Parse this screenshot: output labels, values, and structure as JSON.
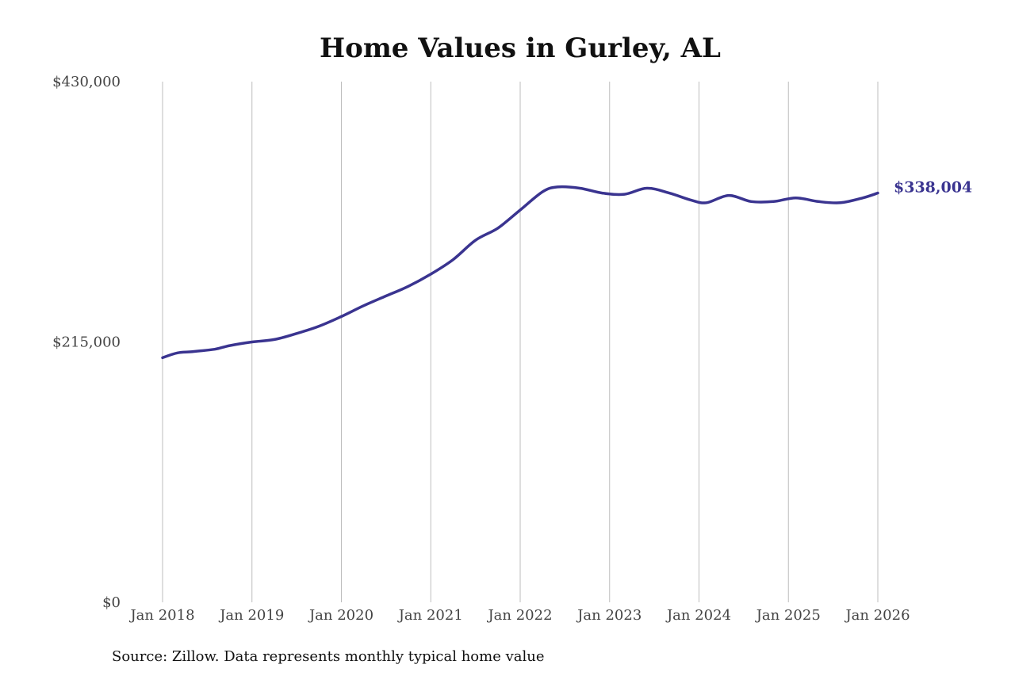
{
  "chart_data": {
    "type": "line",
    "title": "Home Values in Gurley, AL",
    "xlabel": "",
    "ylabel": "",
    "source": "Source: Zillow. Data represents monthly typical home value",
    "ylim": [
      0,
      430000
    ],
    "y_ticks": [
      {
        "value": 0,
        "label": "$0"
      },
      {
        "value": 215000,
        "label": "$215,000"
      },
      {
        "value": 430000,
        "label": "$430,000"
      }
    ],
    "x_range": [
      "2018-01",
      "2026-01"
    ],
    "x_ticks": [
      {
        "date": "2018-01",
        "label": "Jan 2018"
      },
      {
        "date": "2019-01",
        "label": "Jan 2019"
      },
      {
        "date": "2020-01",
        "label": "Jan 2020"
      },
      {
        "date": "2021-01",
        "label": "Jan 2021"
      },
      {
        "date": "2022-01",
        "label": "Jan 2022"
      },
      {
        "date": "2023-01",
        "label": "Jan 2023"
      },
      {
        "date": "2024-01",
        "label": "Jan 2024"
      },
      {
        "date": "2025-01",
        "label": "Jan 2025"
      },
      {
        "date": "2026-01",
        "label": "Jan 2026"
      }
    ],
    "grid": {
      "vertical": true,
      "horizontal": false
    },
    "line_color": "#3a3490",
    "end_label": "$338,004",
    "series": [
      {
        "values": [
          {
            "x": "2018-01",
            "y": 202000
          },
          {
            "x": "2018-03",
            "y": 206000
          },
          {
            "x": "2018-05",
            "y": 207000
          },
          {
            "x": "2018-08",
            "y": 209000
          },
          {
            "x": "2018-10",
            "y": 212000
          },
          {
            "x": "2019-01",
            "y": 215000
          },
          {
            "x": "2019-04",
            "y": 217000
          },
          {
            "x": "2019-07",
            "y": 222000
          },
          {
            "x": "2019-10",
            "y": 228000
          },
          {
            "x": "2020-01",
            "y": 236000
          },
          {
            "x": "2020-04",
            "y": 245000
          },
          {
            "x": "2020-07",
            "y": 253000
          },
          {
            "x": "2020-10",
            "y": 261000
          },
          {
            "x": "2021-01",
            "y": 271000
          },
          {
            "x": "2021-04",
            "y": 283000
          },
          {
            "x": "2021-07",
            "y": 299000
          },
          {
            "x": "2021-10",
            "y": 309000
          },
          {
            "x": "2022-01",
            "y": 324000
          },
          {
            "x": "2022-04",
            "y": 339000
          },
          {
            "x": "2022-06",
            "y": 343000
          },
          {
            "x": "2022-09",
            "y": 342000
          },
          {
            "x": "2022-12",
            "y": 338000
          },
          {
            "x": "2023-03",
            "y": 337000
          },
          {
            "x": "2023-06",
            "y": 342000
          },
          {
            "x": "2023-09",
            "y": 338000
          },
          {
            "x": "2023-12",
            "y": 332000
          },
          {
            "x": "2024-02",
            "y": 330000
          },
          {
            "x": "2024-05",
            "y": 336000
          },
          {
            "x": "2024-08",
            "y": 331000
          },
          {
            "x": "2024-11",
            "y": 331000
          },
          {
            "x": "2025-02",
            "y": 334000
          },
          {
            "x": "2025-05",
            "y": 331000
          },
          {
            "x": "2025-08",
            "y": 330000
          },
          {
            "x": "2025-11",
            "y": 334000
          },
          {
            "x": "2026-01",
            "y": 338004
          }
        ]
      }
    ]
  }
}
